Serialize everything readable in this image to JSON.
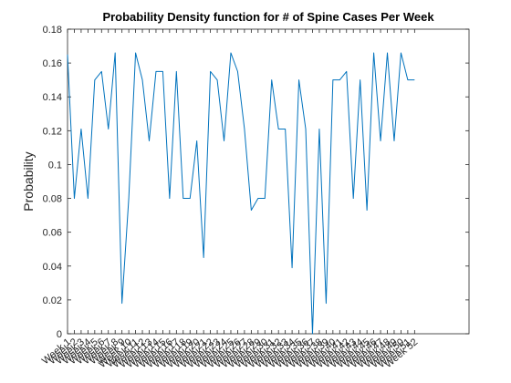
{
  "chart_data": {
    "type": "line",
    "title": "Probability Density function for # of Spine Cases Per Week",
    "xlabel": "",
    "ylabel": "Probability",
    "ylim": [
      0,
      0.18
    ],
    "yticks": [
      "0",
      "0.02",
      "0.04",
      "0.06",
      "0.08",
      "0.1",
      "0.12",
      "0.14",
      "0.16",
      "0.18"
    ],
    "xlim": [
      1,
      60
    ],
    "categories": [
      "Week 1",
      "Week 2",
      "Week 3",
      "Week 4",
      "Week 5",
      "Week 6",
      "Week 7",
      "Week 8",
      "Week 9",
      "Week 10",
      "Week 11",
      "Week 12",
      "Week 13",
      "Week 14",
      "Week 15",
      "Week 16",
      "Week 17",
      "Week 18",
      "Week 19",
      "Week 20",
      "Week 21",
      "Week 22",
      "Week 23",
      "Week 24",
      "Week 25",
      "Week 26",
      "Week 27",
      "Week 28",
      "Week 29",
      "Week 30",
      "Week 31",
      "Week 32",
      "Week 33",
      "Week 34",
      "Week 35",
      "Week 36",
      "Week 37",
      "Week 38",
      "Week 39",
      "Week 40",
      "Week 41",
      "Week 42",
      "Week 43",
      "Week 44",
      "Week 45",
      "Week 46",
      "Week 47",
      "Week 48",
      "Week 49",
      "Week 50",
      "Week 51",
      "Week 52"
    ],
    "series": [
      {
        "color": "#0072bd",
        "values": [
          0.165,
          0.08,
          0.121,
          0.08,
          0.15,
          0.155,
          0.121,
          0.166,
          0.018,
          0.08,
          0.166,
          0.15,
          0.114,
          0.155,
          0.155,
          0.08,
          0.155,
          0.08,
          0.08,
          0.114,
          0.045,
          0.155,
          0.15,
          0.114,
          0.166,
          0.155,
          0.121,
          0.073,
          0.08,
          0.08,
          0.15,
          0.121,
          0.121,
          0.039,
          0.15,
          0.121,
          0.0,
          0.121,
          0.018,
          0.15,
          0.15,
          0.155,
          0.08,
          0.15,
          0.073,
          0.166,
          0.114,
          0.166,
          0.114,
          0.166,
          0.15,
          0.15
        ]
      }
    ],
    "grid": false,
    "legend": "none"
  }
}
